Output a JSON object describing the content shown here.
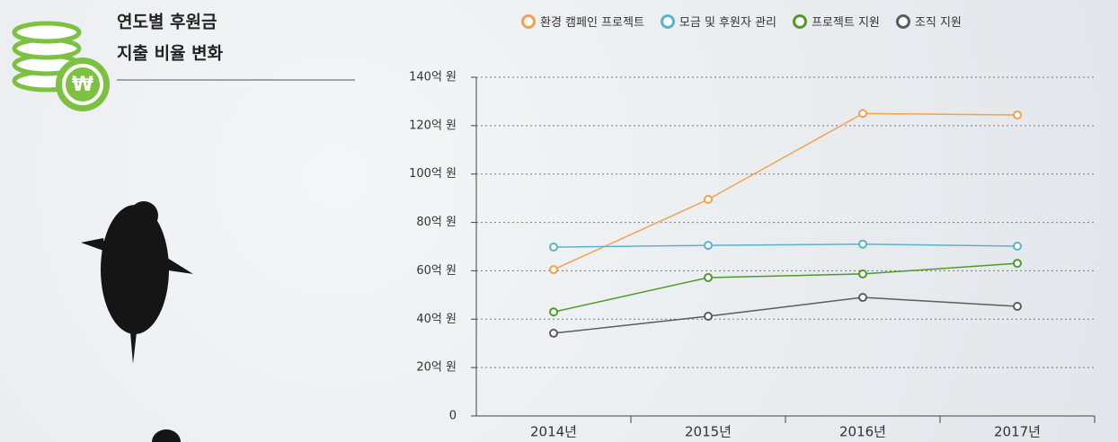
{
  "chart_data": {
    "type": "line",
    "title": [
      "연도별 후원금",
      "지출 비율 변화"
    ],
    "categories": [
      "2014년",
      "2015년",
      "2016년",
      "2017년"
    ],
    "series": [
      {
        "name": "환경 캠페인 프로젝트",
        "color": "#f4a14f",
        "values": [
          60.5,
          89.5,
          125,
          124.4
        ]
      },
      {
        "name": "모금 및 후원자 관리",
        "color": "#5bb3c9",
        "values": [
          69.8,
          70.5,
          71,
          70.2
        ]
      },
      {
        "name": "프로젝트 지원",
        "color": "#4f9a28",
        "values": [
          43,
          57.2,
          58.7,
          63.1
        ]
      },
      {
        "name": "조직 지원",
        "color": "#5c5c5c",
        "values": [
          34.2,
          41.2,
          49,
          45.3
        ]
      }
    ],
    "ylim": [
      0,
      140
    ],
    "yticks": [
      0,
      {
        "value": 20,
        "label": "20억 원"
      },
      {
        "value": 40,
        "label": "40억 원"
      },
      {
        "value": 60,
        "label": "60억 원"
      },
      {
        "value": 80,
        "label": "80억 원"
      },
      {
        "value": 100,
        "label": "100억 원"
      },
      {
        "value": 120,
        "label": "120억 원"
      },
      {
        "value": 140,
        "label": "140억 원"
      }
    ],
    "grid": true
  }
}
